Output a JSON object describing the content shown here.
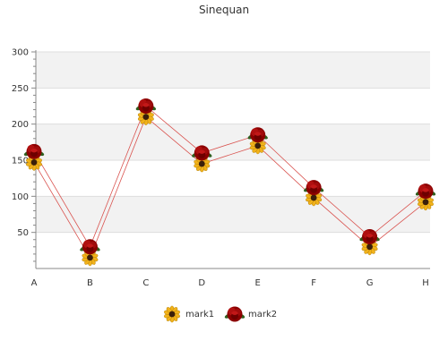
{
  "chart_data": {
    "type": "line",
    "title": "Sinequan",
    "xlabel": "",
    "ylabel": "",
    "categories": [
      "A",
      "B",
      "C",
      "D",
      "E",
      "F",
      "G",
      "H"
    ],
    "y_ticks": [
      50,
      100,
      150,
      200,
      250,
      300
    ],
    "ylim": [
      0,
      300
    ],
    "grid": "horizontal bands",
    "legend_position": "bottom-center",
    "series": [
      {
        "name": "mark1",
        "marker": "sunflower-icon",
        "line_color": "#d9534f",
        "values": [
          147,
          15,
          210,
          145,
          170,
          98,
          30,
          92
        ]
      },
      {
        "name": "mark2",
        "marker": "rose-icon",
        "line_color": "#d9534f",
        "values": [
          162,
          30,
          225,
          160,
          185,
          112,
          44,
          107
        ]
      }
    ]
  }
}
